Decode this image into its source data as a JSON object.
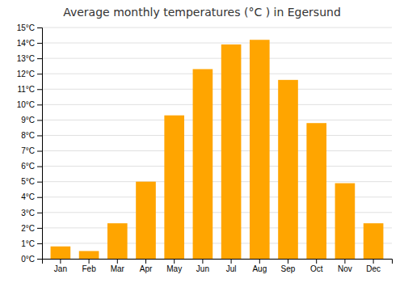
{
  "chart_data": {
    "type": "bar",
    "title": "Average monthly temperatures (°C ) in Egersund",
    "categories": [
      "Jan",
      "Feb",
      "Mar",
      "Apr",
      "May",
      "Jun",
      "Jul",
      "Aug",
      "Sep",
      "Oct",
      "Nov",
      "Dec"
    ],
    "values": [
      0.8,
      0.5,
      2.3,
      5.0,
      9.3,
      12.3,
      13.9,
      14.2,
      11.6,
      8.8,
      4.9,
      2.3
    ],
    "color": "#FFA500",
    "ylim": [
      0,
      15
    ],
    "yticks": [
      {
        "value": 0,
        "label": "0°C"
      },
      {
        "value": 1,
        "label": "1°C"
      },
      {
        "value": 2,
        "label": "2°C"
      },
      {
        "value": 3,
        "label": "3°C"
      },
      {
        "value": 4,
        "label": "4°C"
      },
      {
        "value": 5,
        "label": "5°C"
      },
      {
        "value": 6,
        "label": "6°C"
      },
      {
        "value": 7,
        "label": "7°C"
      },
      {
        "value": 8,
        "label": "8°C"
      },
      {
        "value": 9,
        "label": "9°C"
      },
      {
        "value": 10,
        "label": "10°C"
      },
      {
        "value": 11,
        "label": "11°C"
      },
      {
        "value": 12,
        "label": "12°C"
      },
      {
        "value": 13,
        "label": "13°C"
      },
      {
        "value": 14,
        "label": "14°C"
      },
      {
        "value": 15,
        "label": "15°C"
      }
    ],
    "grid": true
  }
}
